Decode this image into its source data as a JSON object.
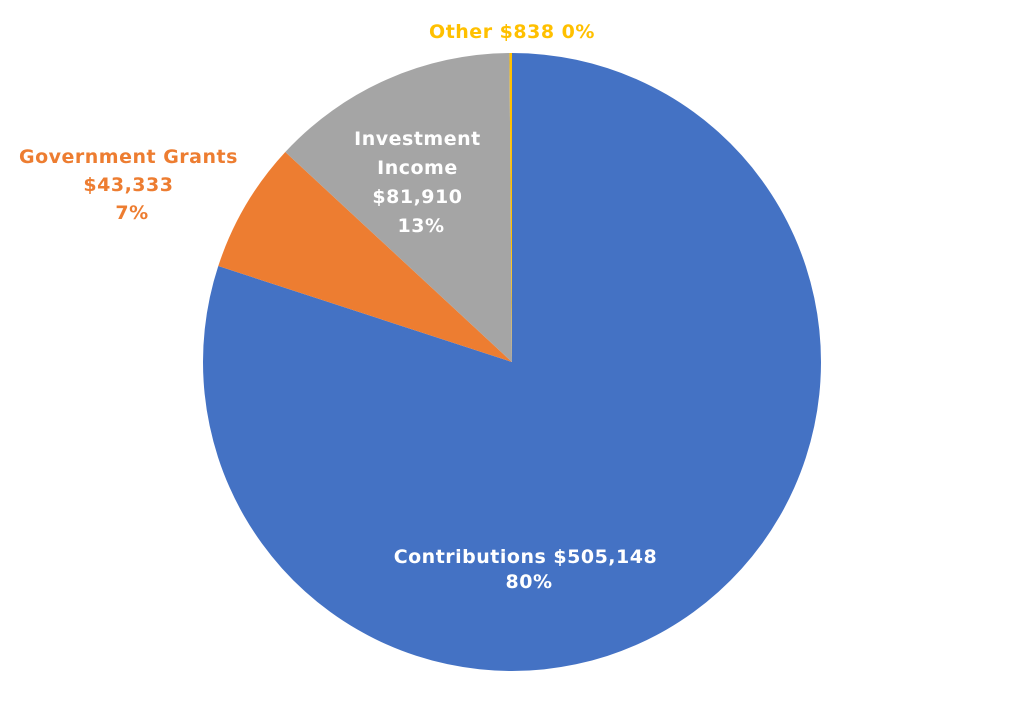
{
  "chart_data": {
    "type": "pie",
    "title": "",
    "slices": [
      {
        "name": "Contributions",
        "value": 505148,
        "value_label": "$505,148",
        "percent_label": "80%",
        "color": "#4472C4"
      },
      {
        "name": "Government Grants",
        "value": 43333,
        "value_label": "$43,333",
        "percent_label": "7%",
        "color": "#ED7D31"
      },
      {
        "name": "Investment Income",
        "value": 81910,
        "value_label": "$81,910",
        "percent_label": "13%",
        "color": "#A5A5A5"
      },
      {
        "name": "Other",
        "value": 838,
        "value_label": "$838",
        "percent_label": "0%",
        "color": "#FFC000"
      }
    ],
    "labels": {
      "contributions": {
        "line1": "Contributions $505,148",
        "line2": "80%",
        "color": "#FFFFFF"
      },
      "government_grants": {
        "line1": "Government Grants",
        "line2": "$43,333",
        "line3": "7%",
        "color": "#ED7D31"
      },
      "investment_income": {
        "line1": "Investment",
        "line2": "Income",
        "line3": "$81,910",
        "line4": "13%",
        "color": "#FFFFFF"
      },
      "other": {
        "line1": "Other $838 0%",
        "color": "#FFC000"
      }
    },
    "legend": "none",
    "start": "top",
    "direction": "clockwise"
  }
}
